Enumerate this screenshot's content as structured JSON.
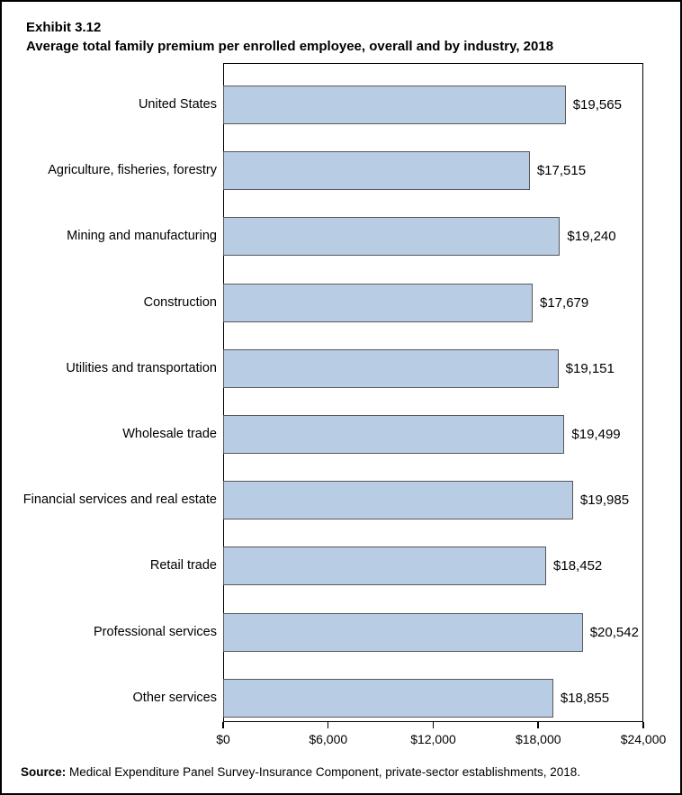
{
  "header": {
    "exhibit": "Exhibit 3.12",
    "title": "Average total family premium per enrolled employee, overall and by industry, 2018"
  },
  "chart_data": {
    "type": "bar",
    "orientation": "horizontal",
    "categories": [
      "United States",
      "Agriculture, fisheries, forestry",
      "Mining and manufacturing",
      "Construction",
      "Utilities and transportation",
      "Wholesale trade",
      "Financial services and real estate",
      "Retail trade",
      "Professional services",
      "Other services"
    ],
    "values": [
      19565,
      17515,
      19240,
      17679,
      19151,
      19499,
      19985,
      18452,
      20542,
      18855
    ],
    "value_labels": [
      "$19,565",
      "$17,515",
      "$19,240",
      "$17,679",
      "$19,151",
      "$19,499",
      "$19,985",
      "$18,452",
      "$20,542",
      "$18,855"
    ],
    "xlim": [
      0,
      24000
    ],
    "x_ticks": [
      {
        "value": 0,
        "label": "$0"
      },
      {
        "value": 6000,
        "label": "$6,000"
      },
      {
        "value": 12000,
        "label": "$12,000"
      },
      {
        "value": 18000,
        "label": "$18,000"
      },
      {
        "value": 24000,
        "label": "$24,000"
      }
    ],
    "grid": false,
    "legend": null,
    "bar_fill_color": "#b8cce4",
    "bar_border_color": "#595959",
    "frame_color": "#000000",
    "text_color": "#000000"
  },
  "source": {
    "label": "Source:",
    "text": " Medical Expenditure Panel Survey-Insurance Component, private-sector establishments, 2018."
  }
}
